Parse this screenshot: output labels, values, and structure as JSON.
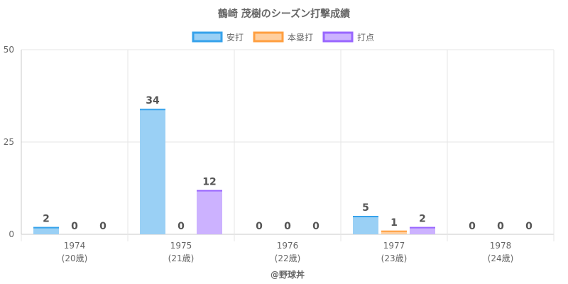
{
  "chart_data": {
    "type": "bar",
    "title": "鶴崎 茂樹のシーズン打撃成績",
    "categories": [
      "1974",
      "1975",
      "1976",
      "1977",
      "1978"
    ],
    "category_sublabels": [
      "(20歳)",
      "(21歳)",
      "(22歳)",
      "(23歳)",
      "(24歳)"
    ],
    "series": [
      {
        "name": "安打",
        "values": [
          2,
          34,
          0,
          5,
          0
        ],
        "fill": "#9ad0f5",
        "stroke": "#36a2eb"
      },
      {
        "name": "本塁打",
        "values": [
          0,
          0,
          0,
          1,
          0
        ],
        "fill": "#ffcf9f",
        "stroke": "#ff9f40"
      },
      {
        "name": "打点",
        "values": [
          0,
          12,
          0,
          2,
          0
        ],
        "fill": "#ccb2ff",
        "stroke": "#9966ff"
      }
    ],
    "ylim": [
      0,
      50
    ],
    "yticks": [
      0,
      25,
      50
    ],
    "grid": true,
    "legend_position": "top"
  },
  "credit": "@野球丼"
}
